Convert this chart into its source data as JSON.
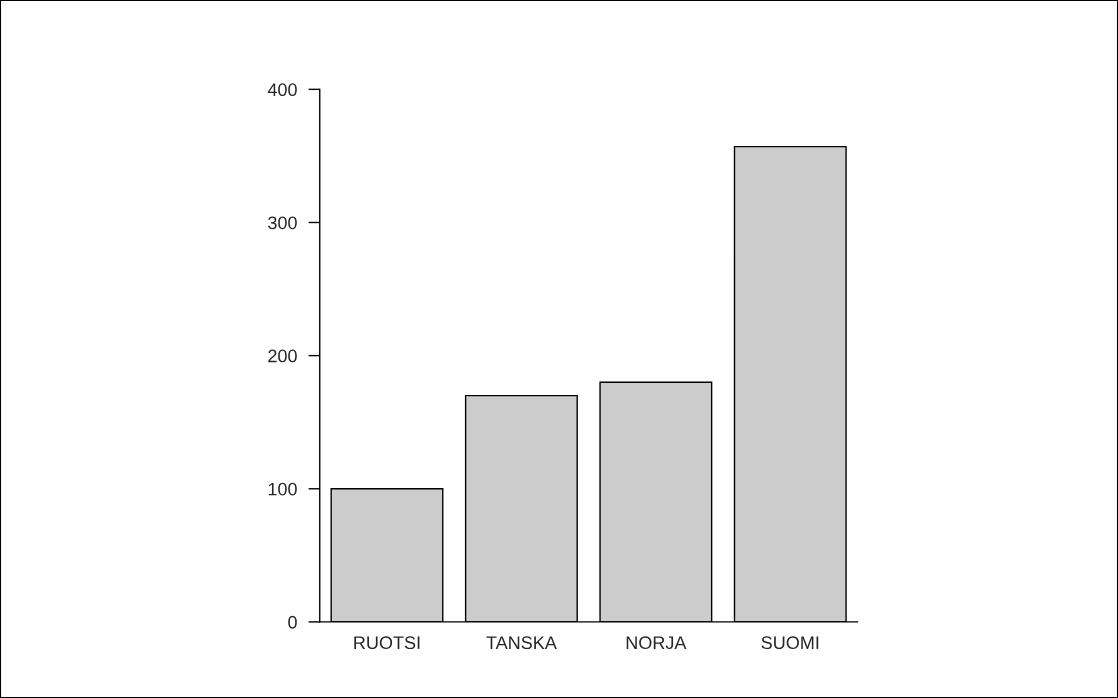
{
  "chart_data": {
    "type": "bar",
    "categories": [
      "RUOTSI",
      "TANSKA",
      "NORJA",
      "SUOMI"
    ],
    "values": [
      100,
      170,
      180,
      357
    ],
    "color": "#cccccc",
    "ylim": [
      0,
      400
    ],
    "yticks": [
      0,
      100,
      200,
      300,
      400
    ],
    "grid": false,
    "legend": false
  }
}
